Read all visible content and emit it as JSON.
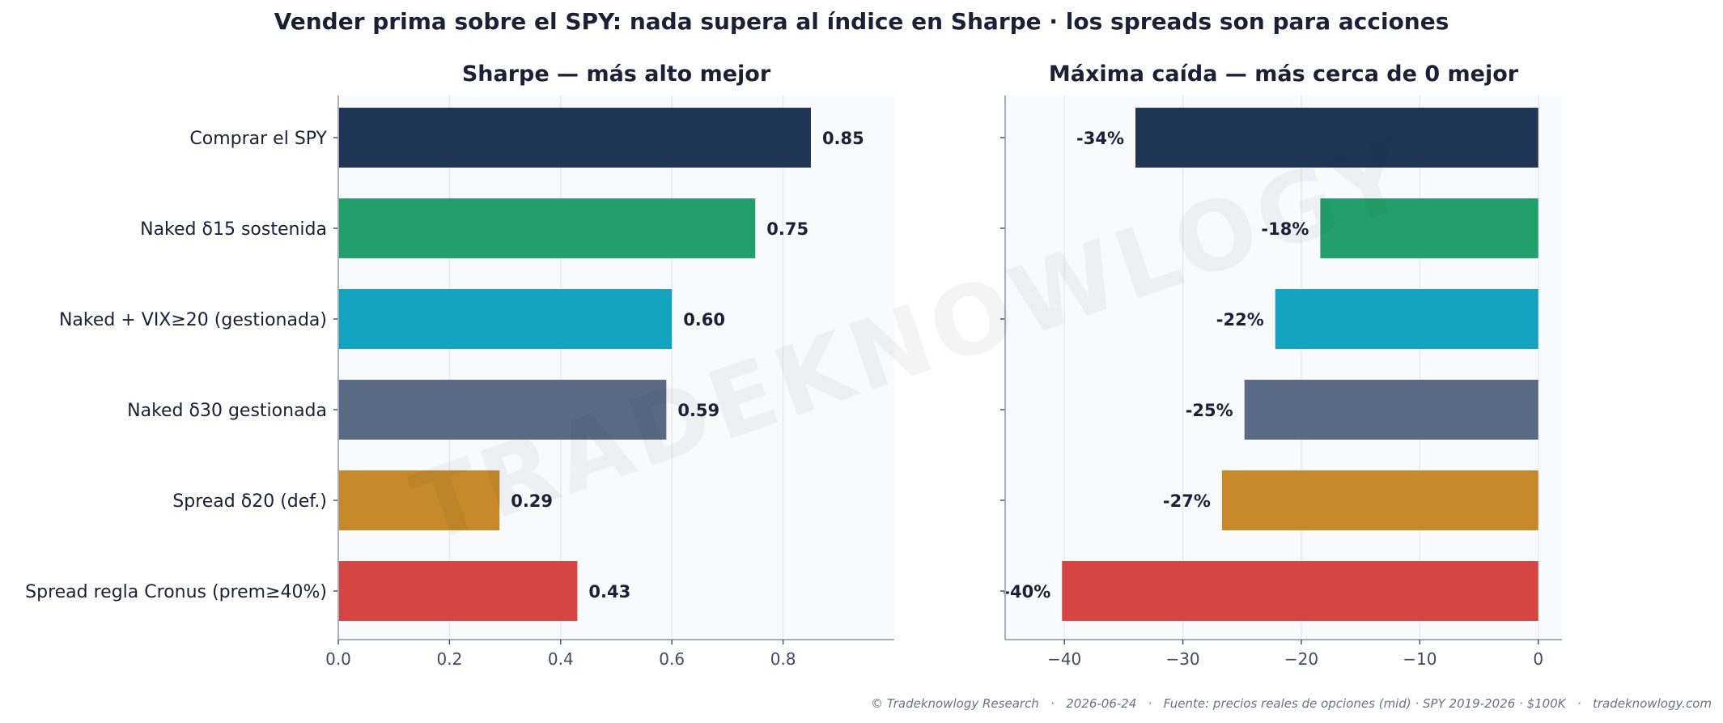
{
  "suptitle": "Vender prima sobre el SPY: nada supera al índice en Sharpe · los spreads son para acciones",
  "watermark": "TRADEKNOWLOGY",
  "footer": "© Tradeknowlogy Research   ·   2026-06-24   ·   Fuente: precios reales de opciones (mid) · SPY 2019-2026 · $100K   ·   tradeknowlogy.com",
  "colors": [
    "#1e3556",
    "#22a06b",
    "#12a3c1",
    "#5b6a84",
    "#c68829",
    "#d64541"
  ],
  "chart_data": [
    {
      "type": "bar",
      "orientation": "horizontal",
      "title": "Sharpe — más alto mejor",
      "categories": [
        "Comprar el SPY",
        "Naked δ15 sostenida",
        "Naked + VIX≥20 (gestionada)",
        "Naked δ30 gestionada",
        "Spread δ20 (def.)",
        "Spread regla Cronus (prem≥40%)"
      ],
      "values": [
        0.85,
        0.75,
        0.6,
        0.59,
        0.29,
        0.43
      ],
      "value_labels": [
        "0.85",
        "0.75",
        "0.60",
        "0.59",
        "0.29",
        "0.43"
      ],
      "xlim": [
        0,
        1.0
      ],
      "xticks": [
        0.0,
        0.2,
        0.4,
        0.6,
        0.8
      ],
      "xtick_labels": [
        "0.0",
        "0.2",
        "0.4",
        "0.6",
        "0.8"
      ],
      "grid": true
    },
    {
      "type": "bar",
      "orientation": "horizontal",
      "title": "Máxima caída — más cerca de 0 mejor",
      "categories": [
        "Comprar el SPY",
        "Naked δ15 sostenida",
        "Naked + VIX≥20 (gestionada)",
        "Naked δ30 gestionada",
        "Spread δ20 (def.)",
        "Spread regla Cronus (prem≥40%)"
      ],
      "values": [
        -34,
        -18.4,
        -22.2,
        -24.8,
        -26.7,
        -40.2
      ],
      "value_labels": [
        "-34%",
        "-18%",
        "-22%",
        "-25%",
        "-27%",
        "-40%"
      ],
      "xlim": [
        -45,
        2
      ],
      "xticks": [
        -40,
        -30,
        -20,
        -10,
        0
      ],
      "xtick_labels": [
        "−40",
        "−30",
        "−20",
        "−10",
        "0"
      ],
      "grid": true
    }
  ]
}
